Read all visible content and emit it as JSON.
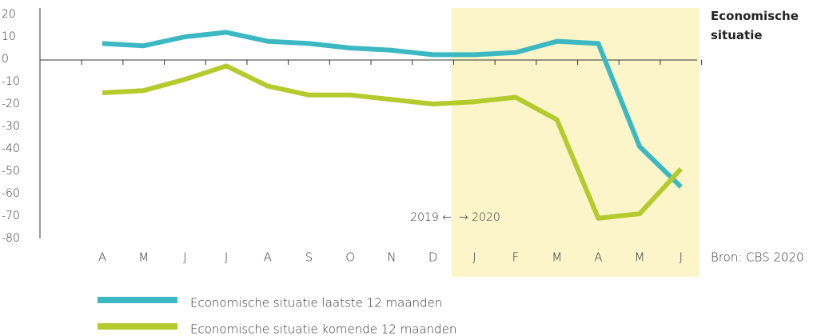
{
  "chart_data": {
    "type": "line",
    "title": "Economische situatie",
    "source": "Bron: CBS 2020",
    "annotations": [
      "2019 ←",
      "→ 2020"
    ],
    "categories": [
      "A",
      "M",
      "J",
      "J",
      "A",
      "S",
      "O",
      "N",
      "D",
      "J",
      "F",
      "M",
      "A",
      "M",
      "J"
    ],
    "series": [
      {
        "name": "Economische situatie laatste 12 maanden",
        "color": "#3bb8c1",
        "values": [
          7,
          6,
          10,
          12,
          8,
          7,
          5,
          4,
          2,
          2,
          3,
          8,
          7,
          -39,
          -57
        ]
      },
      {
        "name": "Economische situatie komende 12 maanden",
        "color": "#b4cb2e",
        "values": [
          -15,
          -14,
          -9,
          -3,
          -12,
          -16,
          -16,
          -18,
          -20,
          -19,
          -17,
          -27,
          -71,
          -69,
          -49
        ]
      }
    ],
    "ylim": [
      -80,
      20
    ],
    "yticks": [
      20,
      10,
      0,
      -10,
      -20,
      -30,
      -40,
      -50,
      -60,
      -70,
      -80
    ]
  }
}
